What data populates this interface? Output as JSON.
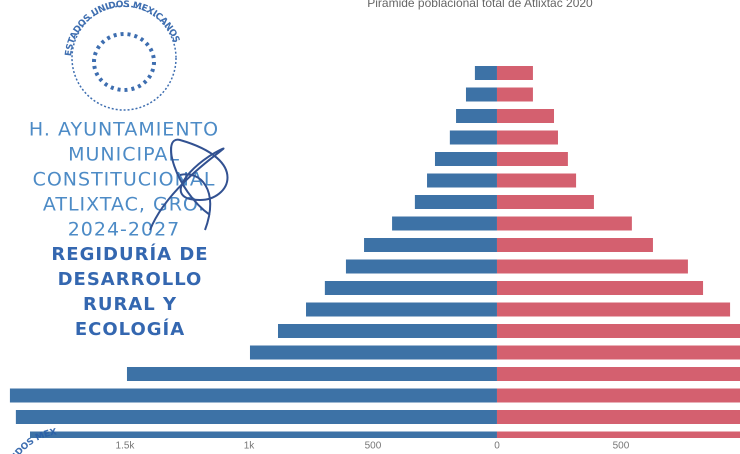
{
  "chart_data": {
    "type": "pyramid",
    "title": "Pirámide poblacional total de Atlixtac 2020",
    "series": [
      {
        "color": "#3d72a6",
        "values": [
          -89,
          -125,
          -165,
          -190,
          -250,
          -282,
          -331,
          -423,
          -536,
          -609,
          -694,
          -770,
          -883,
          -996,
          -1492,
          -1964,
          -1940,
          -1883
        ]
      },
      {
        "color": "#d4606f",
        "values": [
          145,
          145,
          230,
          246,
          286,
          319,
          391,
          544,
          629,
          770,
          831,
          940,
          1000,
          1050,
          1500,
          1950,
          1920,
          1880
        ]
      }
    ],
    "xlim": [
      -2004,
      980
    ],
    "xticks": [
      {
        "value": -1500,
        "label": "1.5k"
      },
      {
        "value": -1000,
        "label": "1k"
      },
      {
        "value": -500,
        "label": "500"
      },
      0,
      {
        "value": 500,
        "label": "500"
      }
    ],
    "grid": false
  },
  "stamps": {
    "seal_top": "ESTADOS UNIDOS MEXICANOS",
    "seal_bottom": "UNIDOS MEX",
    "lines": [
      "H. AYUNTAMIENTO",
      "MUNICIPAL",
      "CONSTITUCIONAL",
      "ATLIXTAC, GRO.",
      "2024-2027"
    ],
    "office": [
      "REGIDURÍA DE",
      "DESARROLLO",
      "RURAL Y",
      "ECOLOGÍA"
    ]
  }
}
